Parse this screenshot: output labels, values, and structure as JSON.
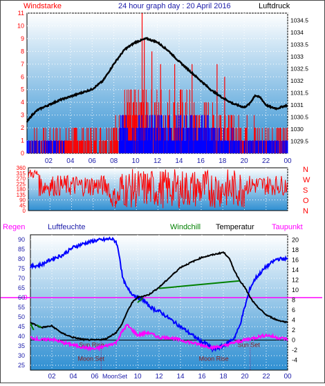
{
  "title": "24 hour graph day : 20 April 2016",
  "colors": {
    "wind": "#ff0000",
    "gust": "#0000ff",
    "pressure": "#000000",
    "humidity": "#0000ff",
    "temperature": "#000000",
    "dewpoint": "#ff00ff",
    "windchill": "#008000",
    "axis_blue": "#1a1aa8"
  },
  "chart_data": [
    {
      "type": "bar",
      "title": "24 hour graph day : 20 April 2016",
      "left_axis_label": "Windstarke",
      "right_axis_label": "Luftdruck",
      "ylim_left": [
        0,
        11
      ],
      "ylim_right": [
        1029.0,
        1034.8
      ],
      "yticks_left": [
        "0",
        "1",
        "2",
        "3",
        "4",
        "5",
        "6",
        "7",
        "8",
        "9",
        "10",
        "11"
      ],
      "yticks_right": [
        "1029.5",
        "1030",
        "1030.5",
        "1031",
        "1031.5",
        "1032",
        "1032.5",
        "1033",
        "1033.5",
        "1034",
        "1034.5"
      ],
      "x_ticks": [
        "02",
        "04",
        "06",
        "08",
        "10",
        "12",
        "14",
        "16",
        "18",
        "20",
        "22",
        "00"
      ],
      "xlim": [
        0,
        24
      ],
      "pressure_points": [
        [
          0,
          1030.3
        ],
        [
          0.5,
          1030.6
        ],
        [
          1,
          1030.8
        ],
        [
          2,
          1031.0
        ],
        [
          3,
          1031.2
        ],
        [
          4,
          1031.35
        ],
        [
          5,
          1031.5
        ],
        [
          6,
          1031.65
        ],
        [
          7,
          1032.0
        ],
        [
          8,
          1032.7
        ],
        [
          9,
          1033.3
        ],
        [
          10,
          1033.6
        ],
        [
          11,
          1033.75
        ],
        [
          12,
          1033.6
        ],
        [
          13,
          1033.25
        ],
        [
          14,
          1032.8
        ],
        [
          15,
          1032.4
        ],
        [
          16,
          1032.0
        ],
        [
          17,
          1031.6
        ],
        [
          18,
          1031.3
        ],
        [
          19,
          1031.05
        ],
        [
          20,
          1030.9
        ],
        [
          20.5,
          1031.05
        ],
        [
          21,
          1031.4
        ],
        [
          21.5,
          1031.3
        ],
        [
          22,
          1031.0
        ],
        [
          22.5,
          1030.9
        ],
        [
          23,
          1030.85
        ],
        [
          24,
          1031.0
        ]
      ],
      "wind_bands": [
        [
          0.3,
          7.5,
          0,
          2
        ],
        [
          7.5,
          8.5,
          0,
          3
        ],
        [
          8.5,
          15,
          0,
          5
        ],
        [
          15,
          18.5,
          0,
          4
        ],
        [
          18.5,
          21,
          0,
          3
        ],
        [
          21,
          24,
          0,
          2
        ]
      ],
      "gust_bands": [
        [
          0,
          3.5,
          0,
          1
        ],
        [
          8.5,
          17,
          0,
          3
        ],
        [
          17,
          19,
          0,
          2
        ],
        [
          19,
          24,
          0,
          1
        ]
      ]
    },
    {
      "type": "line",
      "title": "Wind direction",
      "ylim": [
        0,
        360
      ],
      "yticks": [
        "0",
        "45",
        "90",
        "135",
        "180",
        "225",
        "270",
        "315",
        "360"
      ],
      "right_labels": [
        "N",
        "W",
        "S",
        "O",
        "N"
      ],
      "direction_bands": [
        [
          0,
          1,
          270,
          350
        ],
        [
          1,
          7.5,
          120,
          300
        ],
        [
          7.5,
          8.5,
          20,
          200
        ],
        [
          8.5,
          20,
          20,
          350
        ],
        [
          20,
          24,
          130,
          300
        ]
      ]
    },
    {
      "type": "line",
      "labels": {
        "regen": "Regen",
        "luftfeuchte": "Luftfeuchte",
        "windchill": "Windchill",
        "temperatur": "Temperatur",
        "taupunkt": "Taupunkt",
        "left_zero": "0"
      },
      "ylim_left": [
        22.5,
        92.5
      ],
      "ylim_right": [
        -6.0,
        21.0
      ],
      "yticks_left": [
        "25",
        "30",
        "35",
        "40",
        "45",
        "50",
        "55",
        "60",
        "65",
        "70",
        "75",
        "80",
        "85",
        "90"
      ],
      "yticks_right": [
        "-4",
        "-2",
        "0",
        "2",
        "4",
        "6",
        "8",
        "10",
        "12",
        "14",
        "16",
        "18",
        "20"
      ],
      "x_ticks": [
        "02",
        "04",
        "06",
        "08",
        "10",
        "12",
        "14",
        "16",
        "18",
        "20",
        "22",
        "00"
      ],
      "humidity_points": [
        [
          0,
          76
        ],
        [
          1,
          77
        ],
        [
          2,
          80
        ],
        [
          3,
          82
        ],
        [
          4,
          86
        ],
        [
          5,
          88
        ],
        [
          6,
          89.5
        ],
        [
          7,
          90
        ],
        [
          7.5,
          90.5
        ],
        [
          8,
          89
        ],
        [
          8.3,
          82
        ],
        [
          8.6,
          70
        ],
        [
          9,
          65
        ],
        [
          9.5,
          62
        ],
        [
          10,
          60
        ],
        [
          10.5,
          59
        ],
        [
          11,
          56
        ],
        [
          11.5,
          54
        ],
        [
          12,
          53
        ],
        [
          13,
          49
        ],
        [
          14,
          45
        ],
        [
          15,
          41
        ],
        [
          16,
          37
        ],
        [
          16.5,
          36
        ],
        [
          17,
          33
        ],
        [
          18,
          35
        ],
        [
          19,
          39
        ],
        [
          19.5,
          45
        ],
        [
          20,
          55
        ],
        [
          20.5,
          65
        ],
        [
          21,
          70
        ],
        [
          22,
          76
        ],
        [
          23,
          80
        ],
        [
          23.5,
          80
        ],
        [
          24,
          80
        ]
      ],
      "temperature_points": [
        [
          0,
          3.5
        ],
        [
          1,
          2.5
        ],
        [
          2,
          2.8
        ],
        [
          3,
          1.3
        ],
        [
          4,
          0.5
        ],
        [
          5,
          0.1
        ],
        [
          6,
          0.0
        ],
        [
          7,
          0.2
        ],
        [
          8,
          1.5
        ],
        [
          8.5,
          3.0
        ],
        [
          9,
          5.5
        ],
        [
          9.5,
          7.5
        ],
        [
          10,
          8.5
        ],
        [
          11,
          9.0
        ],
        [
          12,
          10.5
        ],
        [
          13,
          12.5
        ],
        [
          14,
          14.5
        ],
        [
          15,
          15.5
        ],
        [
          16,
          16.5
        ],
        [
          17,
          17.0
        ],
        [
          18,
          17.5
        ],
        [
          18.5,
          16.5
        ],
        [
          19,
          14.0
        ],
        [
          19.5,
          12.0
        ],
        [
          20,
          10.5
        ],
        [
          20.5,
          8.5
        ],
        [
          21,
          7.0
        ],
        [
          21.5,
          6.0
        ],
        [
          22,
          5.0
        ],
        [
          23,
          4.0
        ],
        [
          24,
          3.5
        ]
      ],
      "dewpoint_points": [
        [
          0,
          0.5
        ],
        [
          1,
          0.0
        ],
        [
          2,
          0.2
        ],
        [
          3,
          -0.5
        ],
        [
          4,
          -1.0
        ],
        [
          5,
          -1.5
        ],
        [
          6,
          -1.8
        ],
        [
          7,
          -1.2
        ],
        [
          8,
          -0.5
        ],
        [
          8.5,
          1.5
        ],
        [
          9,
          3.0
        ],
        [
          9.5,
          2.0
        ],
        [
          10,
          1.0
        ],
        [
          11,
          1.5
        ],
        [
          12,
          0.5
        ],
        [
          13,
          0.5
        ],
        [
          14,
          0.0
        ],
        [
          15,
          -0.5
        ],
        [
          16,
          -1.0
        ],
        [
          17,
          -1.5
        ],
        [
          18,
          -1.2
        ],
        [
          19,
          -0.5
        ],
        [
          20,
          0.0
        ],
        [
          21,
          0.5
        ],
        [
          22,
          1.0
        ],
        [
          23,
          0.5
        ],
        [
          24,
          0.2
        ]
      ],
      "windchill_points": [
        [
          0,
          3.3
        ],
        [
          0.3,
          2.0
        ],
        [
          0.6,
          3.0
        ],
        [
          1,
          2.5
        ],
        [
          10,
          7.5
        ],
        [
          10.5,
          8.4
        ],
        [
          12,
          10.3
        ],
        [
          19.5,
          11.8
        ],
        [
          20,
          10.3
        ]
      ],
      "zero_line_left": 60,
      "zero_line_right": 8,
      "sun_rise": {
        "label": "Sun Rise",
        "time": 6.6
      },
      "sun_set": {
        "label": "Sun Set",
        "time": 20.5
      },
      "moon_set": {
        "label": "Moon Set",
        "time": 7.0
      },
      "moon_rise": {
        "label": "Moon Rise",
        "time": 18.3
      },
      "moon_tick_label": "MoonSet"
    }
  ]
}
